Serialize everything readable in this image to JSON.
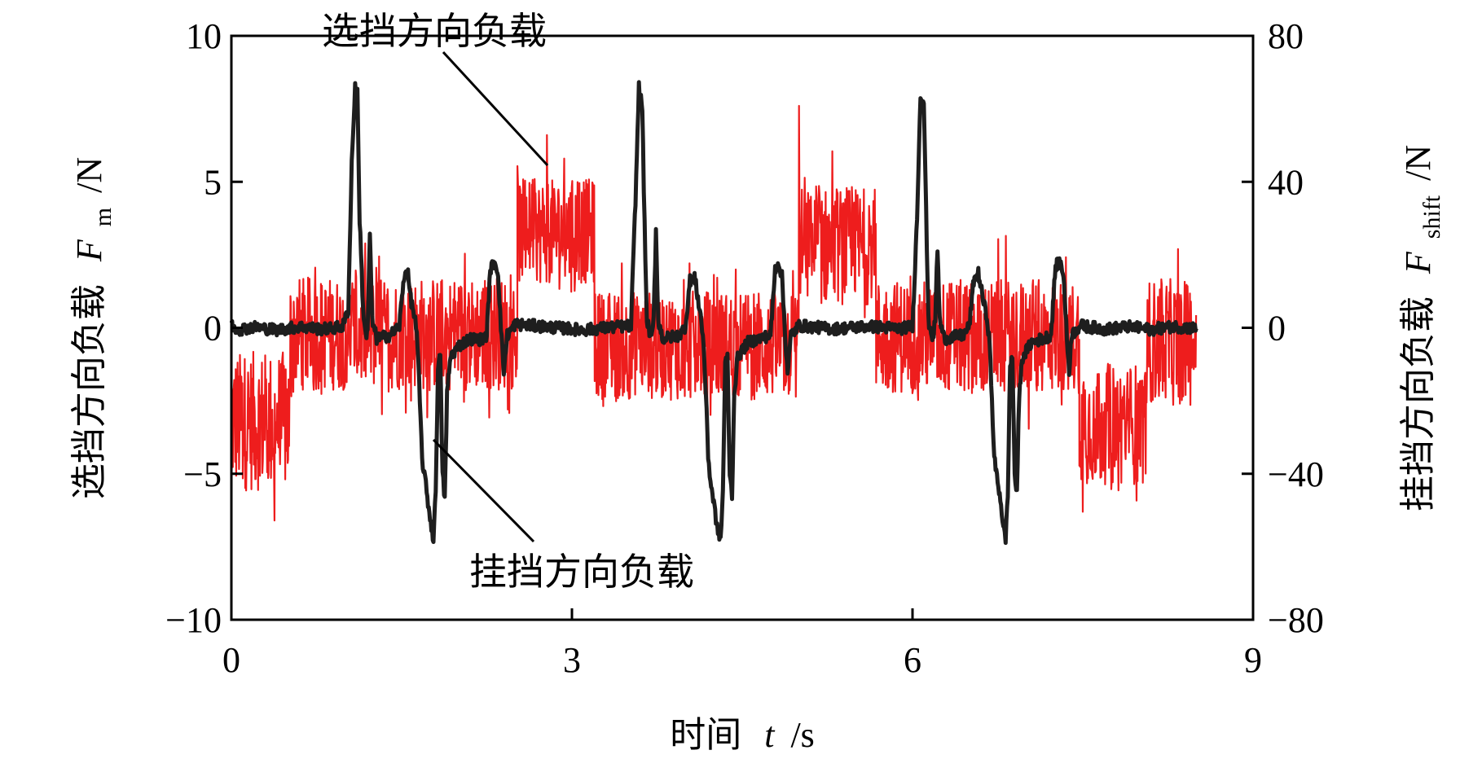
{
  "chart_data": {
    "type": "line",
    "title": "",
    "xlabel": {
      "text": "时间",
      "var": "t",
      "unit": "/s"
    },
    "ylabel_left": {
      "text": "选挡方向负载",
      "var": "F",
      "sub": "m",
      "unit": "/N"
    },
    "ylabel_right": {
      "text": "挂挡方向负载",
      "var": "F",
      "sub": "shift",
      "unit": "/N"
    },
    "xlim": [
      0,
      9
    ],
    "ylim_left": [
      -10,
      10
    ],
    "ylim_right": [
      -80,
      80
    ],
    "x_ticks": [
      0,
      3,
      6,
      9
    ],
    "x_tick_labels": [
      "0",
      "3",
      "6",
      "9"
    ],
    "y_left_ticks": [
      -10,
      -5,
      0,
      5,
      10
    ],
    "y_left_tick_labels": [
      "−10",
      "−5",
      "0",
      "5",
      "10"
    ],
    "y_right_ticks": [
      -80,
      -40,
      0,
      40,
      80
    ],
    "y_right_tick_labels": [
      "−80",
      "−40",
      "0",
      "40",
      "80"
    ],
    "grid": false,
    "legend": "none",
    "annotations": [
      {
        "text": "选挡方向负载",
        "points_to_series": "选挡方向负载"
      },
      {
        "text": "挂挡方向负载",
        "points_to_series": "挂挡方向负载"
      }
    ],
    "series": [
      {
        "name": "选挡方向负载",
        "axis": "left",
        "color": "#ee1d1d",
        "style": "noisy",
        "segments": [
          {
            "x": [
              0.0,
              0.52
            ],
            "center": -3.2,
            "amplitude": 3.2
          },
          {
            "x": [
              0.52,
              2.52
            ],
            "center": -0.2,
            "amplitude": 2.6
          },
          {
            "x": [
              2.52,
              3.2
            ],
            "center": 3.3,
            "amplitude": 2.4
          },
          {
            "x": [
              3.2,
              5.0
            ],
            "center": -0.6,
            "amplitude": 2.5
          },
          {
            "x": [
              5.0,
              5.68
            ],
            "center": 2.8,
            "amplitude": 2.7
          },
          {
            "x": [
              5.68,
              7.47
            ],
            "center": -0.3,
            "amplitude": 2.6
          },
          {
            "x": [
              7.47,
              8.07
            ],
            "center": -3.3,
            "amplitude": 2.8
          },
          {
            "x": [
              8.07,
              8.5
            ],
            "center": -0.5,
            "amplitude": 2.9
          }
        ],
        "extremes": [
          {
            "x": 2.78,
            "y": 6.6
          },
          {
            "x": 5.0,
            "y": 7.6
          },
          {
            "x": 0.38,
            "y": -6.6
          },
          {
            "x": 7.5,
            "y": -6.3
          }
        ]
      },
      {
        "name": "挂挡方向负载",
        "axis": "right",
        "color": "#1e1e1e",
        "baseline": 0,
        "points": [
          [
            0.0,
            0.8
          ],
          [
            0.05,
            -0.5
          ],
          [
            0.2,
            0.2
          ],
          [
            0.4,
            -0.6
          ],
          [
            0.6,
            0.3
          ],
          [
            0.8,
            -0.4
          ],
          [
            0.98,
            0.3
          ],
          [
            1.03,
            5.0
          ],
          [
            1.06,
            45.0
          ],
          [
            1.09,
            66.0
          ],
          [
            1.11,
            64.0
          ],
          [
            1.13,
            30.0
          ],
          [
            1.16,
            5.0
          ],
          [
            1.19,
            -3.0
          ],
          [
            1.2,
            -1.0
          ],
          [
            1.22,
            26.0
          ],
          [
            1.24,
            2.0
          ],
          [
            1.28,
            -3.0
          ],
          [
            1.4,
            -2.0
          ],
          [
            1.48,
            0.5
          ],
          [
            1.52,
            14.0
          ],
          [
            1.55,
            16.0
          ],
          [
            1.58,
            8.0
          ],
          [
            1.62,
            2.0
          ],
          [
            1.64,
            -5.0
          ],
          [
            1.66,
            -20.0
          ],
          [
            1.68,
            -36.0
          ],
          [
            1.7,
            -40.0
          ],
          [
            1.72,
            -45.0
          ],
          [
            1.75,
            -52.0
          ],
          [
            1.78,
            -58.0
          ],
          [
            1.8,
            -45.0
          ],
          [
            1.82,
            -10.0
          ],
          [
            1.84,
            -8.0
          ],
          [
            1.86,
            -40.0
          ],
          [
            1.88,
            -47.0
          ],
          [
            1.9,
            -18.0
          ],
          [
            1.93,
            -8.0
          ],
          [
            2.0,
            -5.0
          ],
          [
            2.1,
            -3.0
          ],
          [
            2.2,
            -3.2
          ],
          [
            2.25,
            -2.0
          ],
          [
            2.28,
            16.0
          ],
          [
            2.32,
            18.0
          ],
          [
            2.35,
            15.0
          ],
          [
            2.38,
            -3.0
          ],
          [
            2.4,
            -12.0
          ],
          [
            2.43,
            -2.0
          ],
          [
            2.5,
            1.0
          ],
          [
            2.8,
            0.2
          ],
          [
            3.1,
            -0.6
          ],
          [
            3.4,
            0.3
          ],
          [
            3.52,
            0.5
          ],
          [
            3.56,
            35.0
          ],
          [
            3.59,
            66.0
          ],
          [
            3.62,
            60.0
          ],
          [
            3.64,
            28.0
          ],
          [
            3.66,
            2.0
          ],
          [
            3.7,
            -3.0
          ],
          [
            3.72,
            2.0
          ],
          [
            3.74,
            27.0
          ],
          [
            3.76,
            2.0
          ],
          [
            3.8,
            -3.0
          ],
          [
            3.95,
            -2.0
          ],
          [
            4.0,
            0.5
          ],
          [
            4.04,
            13.0
          ],
          [
            4.08,
            14.0
          ],
          [
            4.11,
            8.0
          ],
          [
            4.14,
            2.0
          ],
          [
            4.16,
            -5.0
          ],
          [
            4.18,
            -18.0
          ],
          [
            4.2,
            -35.0
          ],
          [
            4.22,
            -42.0
          ],
          [
            4.25,
            -48.0
          ],
          [
            4.28,
            -55.0
          ],
          [
            4.31,
            -58.0
          ],
          [
            4.33,
            -45.0
          ],
          [
            4.35,
            -10.0
          ],
          [
            4.37,
            -8.0
          ],
          [
            4.39,
            -40.0
          ],
          [
            4.41,
            -46.0
          ],
          [
            4.43,
            -18.0
          ],
          [
            4.46,
            -8.0
          ],
          [
            4.55,
            -4.0
          ],
          [
            4.65,
            -3.0
          ],
          [
            4.75,
            -2.0
          ],
          [
            4.79,
            16.0
          ],
          [
            4.82,
            18.0
          ],
          [
            4.85,
            14.0
          ],
          [
            4.88,
            -3.0
          ],
          [
            4.9,
            -12.0
          ],
          [
            4.93,
            -2.0
          ],
          [
            5.0,
            0.6
          ],
          [
            5.3,
            -0.3
          ],
          [
            5.6,
            0.4
          ],
          [
            5.9,
            -0.2
          ],
          [
            6.0,
            0.5
          ],
          [
            6.04,
            30.0
          ],
          [
            6.07,
            64.0
          ],
          [
            6.1,
            62.0
          ],
          [
            6.12,
            32.0
          ],
          [
            6.14,
            2.0
          ],
          [
            6.18,
            -3.0
          ],
          [
            6.2,
            2.0
          ],
          [
            6.22,
            22.0
          ],
          [
            6.24,
            2.0
          ],
          [
            6.28,
            -3.0
          ],
          [
            6.45,
            -2.0
          ],
          [
            6.5,
            0.5
          ],
          [
            6.54,
            13.0
          ],
          [
            6.58,
            15.0
          ],
          [
            6.62,
            8.0
          ],
          [
            6.66,
            2.0
          ],
          [
            6.68,
            -5.0
          ],
          [
            6.7,
            -20.0
          ],
          [
            6.72,
            -36.0
          ],
          [
            6.75,
            -42.0
          ],
          [
            6.78,
            -48.0
          ],
          [
            6.8,
            -55.0
          ],
          [
            6.82,
            -58.0
          ],
          [
            6.84,
            -45.0
          ],
          [
            6.86,
            -10.0
          ],
          [
            6.88,
            -8.0
          ],
          [
            6.9,
            -40.0
          ],
          [
            6.92,
            -46.0
          ],
          [
            6.94,
            -18.0
          ],
          [
            6.97,
            -8.0
          ],
          [
            7.05,
            -4.0
          ],
          [
            7.15,
            -3.0
          ],
          [
            7.22,
            -2.0
          ],
          [
            7.26,
            17.0
          ],
          [
            7.3,
            18.0
          ],
          [
            7.33,
            15.0
          ],
          [
            7.36,
            -3.0
          ],
          [
            7.38,
            -12.0
          ],
          [
            7.4,
            -2.0
          ],
          [
            7.48,
            0.6
          ],
          [
            7.7,
            -0.4
          ],
          [
            7.9,
            0.3
          ],
          [
            8.1,
            -0.5
          ],
          [
            8.3,
            0.4
          ],
          [
            8.5,
            -0.2
          ]
        ]
      }
    ]
  }
}
